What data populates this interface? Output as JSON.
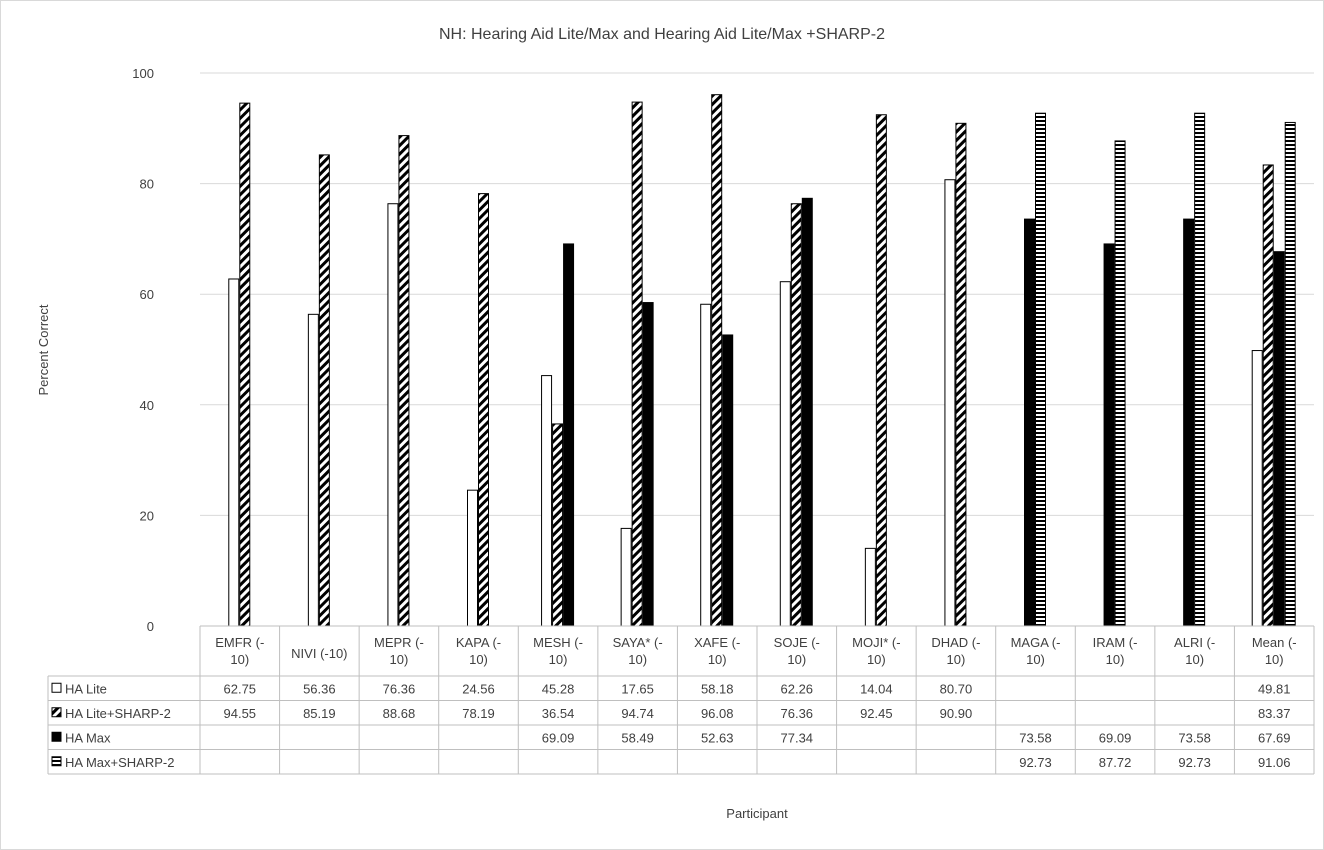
{
  "chart_data": {
    "type": "bar",
    "title": "NH: Hearing Aid Lite/Max and Hearing Aid Lite/Max +SHARP-2",
    "xlabel": "Participant",
    "ylabel": "Percent Correct",
    "ylim": [
      0,
      100
    ],
    "yticks": [
      "0",
      "20",
      "40",
      "60",
      "80",
      "100"
    ],
    "grid": true,
    "legend": "data-table",
    "categories": [
      [
        "EMFR (-",
        "10)"
      ],
      [
        "NIVI (-10)"
      ],
      [
        "MEPR (-",
        "10)"
      ],
      [
        "KAPA (-",
        "10)"
      ],
      [
        "MESH (-",
        "10)"
      ],
      [
        "SAYA* (-",
        "10)"
      ],
      [
        "XAFE (-",
        "10)"
      ],
      [
        "SOJE (-",
        "10)"
      ],
      [
        "MOJI* (-",
        "10)"
      ],
      [
        "DHAD (-",
        "10)"
      ],
      [
        "MAGA (-",
        "10)"
      ],
      [
        "IRAM (-",
        "10)"
      ],
      [
        "ALRI (-",
        "10)"
      ],
      [
        "Mean (-",
        "10)"
      ]
    ],
    "series": [
      {
        "name": "HA Lite",
        "pattern": "open",
        "values": [
          62.75,
          56.36,
          76.36,
          24.56,
          45.28,
          17.65,
          58.18,
          62.26,
          14.04,
          80.7,
          null,
          null,
          null,
          49.81
        ],
        "labels": [
          "62.75",
          "56.36",
          "76.36",
          "24.56",
          "45.28",
          "17.65",
          "58.18",
          "62.26",
          "14.04",
          "80.70",
          "",
          "",
          "",
          "49.81"
        ]
      },
      {
        "name": "HA Lite+SHARP-2",
        "pattern": "diagonal",
        "values": [
          94.55,
          85.19,
          88.68,
          78.19,
          36.54,
          94.74,
          96.08,
          76.36,
          92.45,
          90.9,
          null,
          null,
          null,
          83.37
        ],
        "labels": [
          "94.55",
          "85.19",
          "88.68",
          "78.19",
          "36.54",
          "94.74",
          "96.08",
          "76.36",
          "92.45",
          "90.90",
          "",
          "",
          "",
          "83.37"
        ]
      },
      {
        "name": "HA Max",
        "pattern": "solid",
        "values": [
          null,
          null,
          null,
          null,
          69.09,
          58.49,
          52.63,
          77.34,
          null,
          null,
          73.58,
          69.09,
          73.58,
          67.69
        ],
        "labels": [
          "",
          "",
          "",
          "",
          "69.09",
          "58.49",
          "52.63",
          "77.34",
          "",
          "",
          "73.58",
          "69.09",
          "73.58",
          "67.69"
        ]
      },
      {
        "name": "HA Max+SHARP-2",
        "pattern": "horizontal",
        "values": [
          null,
          null,
          null,
          null,
          null,
          null,
          null,
          null,
          null,
          null,
          92.73,
          87.72,
          92.73,
          91.06
        ],
        "labels": [
          "",
          "",
          "",
          "",
          "",
          "",
          "",
          "",
          "",
          "",
          "92.73",
          "87.72",
          "92.73",
          "91.06"
        ]
      }
    ]
  },
  "colors": {
    "text": "#404040",
    "bar": "#000000",
    "grid": "#d9d9d9",
    "table_border": "#bfbfbf"
  }
}
